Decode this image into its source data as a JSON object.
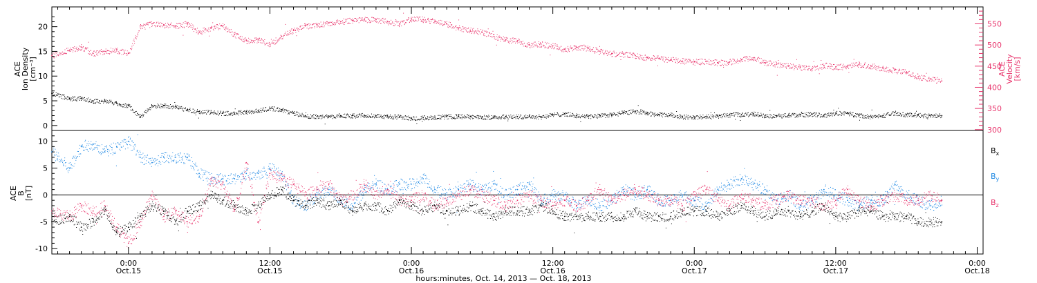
{
  "chart_data": [
    {
      "type": "scatter",
      "panel": "top",
      "ylabel_left": [
        "ACE",
        "Ion Density",
        "[cm⁻³]"
      ],
      "ylabel_right": [
        "ACE",
        "Velocity",
        "[km/s]"
      ],
      "ylim_left": [
        -1,
        24
      ],
      "ylim_right": [
        298,
        590
      ],
      "yticks_left": [
        "0",
        "5",
        "10",
        "15",
        "20"
      ],
      "yticks_right": [
        "300",
        "350",
        "400",
        "450",
        "500",
        "550"
      ],
      "xlim": [
        -6.5,
        72.5
      ],
      "series": [
        {
          "name": "Ion Density",
          "axis": "left",
          "color": "#000000",
          "x": [
            -6.5,
            -5,
            -4,
            -3,
            -2,
            -1,
            0,
            1,
            2,
            3,
            4,
            5,
            6,
            7,
            8,
            9,
            10,
            11,
            12,
            13,
            14,
            15,
            16,
            17,
            18,
            19,
            20,
            21,
            22,
            23,
            24,
            25,
            26,
            27,
            28,
            29,
            30,
            31,
            32,
            33,
            34,
            35,
            36,
            37,
            38,
            39,
            40,
            41,
            42,
            43,
            44,
            45,
            46,
            47,
            48,
            49,
            50,
            51,
            52,
            53,
            54,
            55,
            56,
            57,
            58,
            59,
            60,
            61,
            62,
            63,
            64,
            65,
            66,
            67,
            68,
            69
          ],
          "y": [
            6.5,
            5.5,
            5.5,
            5,
            5,
            4.5,
            4,
            1.8,
            4,
            4,
            3.8,
            3.2,
            2.8,
            2.7,
            2.5,
            2.5,
            2.8,
            3,
            3.5,
            3.2,
            2.5,
            2,
            1.8,
            1.9,
            2,
            2,
            2.1,
            2,
            1.8,
            1.8,
            1.5,
            1.6,
            1.7,
            1.8,
            1.9,
            1.8,
            1.7,
            1.7,
            1.8,
            1.8,
            1.9,
            1.8,
            2.2,
            2.4,
            2,
            1.9,
            2,
            2.2,
            2.6,
            2.9,
            2.5,
            2.2,
            2.2,
            1.8,
            1.7,
            1.8,
            1.9,
            2.2,
            2.2,
            2.4,
            2,
            2,
            2.1,
            2.2,
            2.3,
            2.1,
            2.5,
            2.5,
            2.1,
            1.8,
            2,
            2.6,
            2.2,
            2.1,
            2,
            2
          ]
        },
        {
          "name": "Velocity",
          "axis": "right",
          "color": "#e8336b",
          "x": [
            -6.5,
            -5,
            -4,
            -3,
            -2,
            -1,
            0,
            1,
            2,
            3,
            4,
            5,
            6,
            7,
            8,
            9,
            10,
            11,
            12,
            13,
            14,
            15,
            16,
            17,
            18,
            19,
            20,
            21,
            22,
            23,
            24,
            25,
            26,
            27,
            28,
            29,
            30,
            31,
            32,
            33,
            34,
            35,
            36,
            37,
            38,
            39,
            40,
            41,
            42,
            43,
            44,
            45,
            46,
            47,
            48,
            49,
            50,
            51,
            52,
            53,
            54,
            55,
            56,
            57,
            58,
            59,
            60,
            61,
            62,
            63,
            64,
            65,
            66,
            67,
            68,
            69
          ],
          "y": [
            475,
            488,
            495,
            480,
            485,
            488,
            480,
            545,
            550,
            548,
            545,
            550,
            530,
            540,
            545,
            525,
            510,
            512,
            502,
            520,
            535,
            545,
            548,
            552,
            555,
            558,
            560,
            560,
            555,
            550,
            562,
            560,
            555,
            550,
            540,
            535,
            530,
            520,
            512,
            510,
            500,
            502,
            498,
            490,
            495,
            492,
            485,
            480,
            478,
            475,
            470,
            468,
            465,
            462,
            460,
            462,
            458,
            460,
            465,
            470,
            458,
            455,
            450,
            448,
            445,
            452,
            448,
            450,
            455,
            450,
            445,
            440,
            435,
            425,
            420,
            415
          ]
        }
      ]
    },
    {
      "type": "scatter",
      "panel": "bottom",
      "ylabel_left": [
        "ACE",
        "B",
        "[nT]"
      ],
      "ylim": [
        -11,
        12
      ],
      "yticks": [
        "-10",
        "-5",
        "0",
        "5",
        "10"
      ],
      "xlim": [
        -6.5,
        72.5
      ],
      "zero_line": true,
      "series": [
        {
          "name": "Bx",
          "label_main": "B",
          "label_sub": "x",
          "color": "#000000",
          "x": [
            -6.5,
            -5,
            -4,
            -3,
            -2,
            -1,
            0,
            1,
            2,
            3,
            4,
            5,
            6,
            7,
            8,
            9,
            10,
            11,
            12,
            13,
            14,
            15,
            16,
            17,
            18,
            19,
            20,
            21,
            22,
            23,
            24,
            25,
            26,
            27,
            28,
            29,
            30,
            31,
            32,
            33,
            34,
            35,
            36,
            37,
            38,
            39,
            40,
            41,
            42,
            43,
            44,
            45,
            46,
            47,
            48,
            49,
            50,
            51,
            52,
            53,
            54,
            55,
            56,
            57,
            58,
            59,
            60,
            61,
            62,
            63,
            64,
            65,
            66,
            67,
            68,
            69
          ],
          "y": [
            -5,
            -4,
            -6,
            -5,
            -3,
            -7,
            -6,
            -4,
            -2,
            -3,
            -5,
            -3,
            -2,
            0,
            -1,
            -2,
            -3,
            -2,
            0,
            1,
            -1,
            -2,
            -1,
            -2,
            -1,
            -3,
            -2,
            -2,
            -3,
            -1,
            -2,
            -3,
            -2,
            -3,
            -3,
            -2,
            -3,
            -4,
            -3,
            -3,
            -3,
            -2,
            -3,
            -4,
            -4,
            -4,
            -4,
            -4,
            -4,
            -3,
            -4,
            -4,
            -4,
            -3,
            -3,
            -3,
            -4,
            -3,
            -2,
            -3,
            -4,
            -3,
            -3,
            -4,
            -3,
            -2,
            -4,
            -4,
            -3,
            -3,
            -4,
            -4,
            -4,
            -5,
            -5,
            -5
          ]
        },
        {
          "name": "By",
          "label_main": "B",
          "label_sub": "y",
          "color": "#1a86e3",
          "x": [
            -6.5,
            -5,
            -4,
            -3,
            -2,
            -1,
            0,
            1,
            2,
            3,
            4,
            5,
            6,
            7,
            8,
            9,
            10,
            11,
            12,
            13,
            14,
            15,
            16,
            17,
            18,
            19,
            20,
            21,
            22,
            23,
            24,
            25,
            26,
            27,
            28,
            29,
            30,
            31,
            32,
            33,
            34,
            35,
            36,
            37,
            38,
            39,
            40,
            41,
            42,
            43,
            44,
            45,
            46,
            47,
            48,
            49,
            50,
            51,
            52,
            53,
            54,
            55,
            56,
            57,
            58,
            59,
            60,
            61,
            62,
            63,
            64,
            65,
            66,
            67,
            68,
            69
          ],
          "y": [
            8,
            5,
            9,
            9.5,
            8,
            9,
            10,
            7,
            6,
            7,
            7,
            7,
            4,
            3,
            3,
            3,
            4,
            4,
            5,
            4,
            -1,
            -2,
            0,
            1,
            -1,
            -2,
            1,
            2,
            1,
            2,
            2,
            3,
            1,
            0,
            1,
            2,
            1,
            2,
            0,
            1,
            2,
            -1,
            0,
            0,
            -2,
            -1,
            -2,
            -1,
            1,
            0,
            1,
            -1,
            -1,
            0,
            -1,
            -2,
            1,
            2,
            3,
            2,
            1,
            -1,
            0,
            -2,
            -1,
            1,
            0,
            -1,
            -2,
            -1,
            -1,
            2,
            0,
            -1,
            -2,
            -1
          ]
        },
        {
          "name": "Bz",
          "label_main": "B",
          "label_sub": "z",
          "color": "#e8336b",
          "x": [
            -6.5,
            -5,
            -4,
            -3,
            -2,
            -1,
            0,
            1,
            2,
            3,
            4,
            5,
            6,
            7,
            8,
            9,
            10,
            11,
            12,
            13,
            14,
            15,
            16,
            17,
            18,
            19,
            20,
            21,
            22,
            23,
            24,
            25,
            26,
            27,
            28,
            29,
            30,
            31,
            32,
            33,
            34,
            35,
            36,
            37,
            38,
            39,
            40,
            41,
            42,
            43,
            44,
            45,
            46,
            47,
            48,
            49,
            50,
            51,
            52,
            53,
            54,
            55,
            56,
            57,
            58,
            59,
            60,
            61,
            62,
            63,
            64,
            65,
            66,
            67,
            68,
            69
          ],
          "y": [
            -3,
            -4,
            -2,
            -3,
            -2,
            -6,
            -9,
            -5,
            0,
            -4,
            -3,
            -5,
            -4,
            3,
            2,
            -3,
            6,
            -5,
            4,
            3,
            2,
            0,
            1,
            2,
            -1,
            0,
            2,
            0,
            1,
            -1,
            -1,
            0,
            -2,
            -1,
            0,
            1,
            0,
            -1,
            -2,
            -1,
            0,
            -1,
            -2,
            -1,
            -2,
            -1,
            1,
            -1,
            0,
            1,
            0,
            -1,
            -1,
            -2,
            0,
            1,
            -1,
            -2,
            0,
            -1,
            -2,
            -1,
            0,
            -1,
            -1,
            -2,
            -1,
            1,
            -1,
            -2,
            -1,
            0,
            -1,
            -1,
            0,
            -1
          ]
        }
      ]
    }
  ],
  "x_axis": {
    "ticks": [
      {
        "t": 0,
        "time": "0:00",
        "date": "Oct.15"
      },
      {
        "t": 12,
        "time": "12:00",
        "date": "Oct.15"
      },
      {
        "t": 24,
        "time": "0:00",
        "date": "Oct.16"
      },
      {
        "t": 36,
        "time": "12:00",
        "date": "Oct.16"
      },
      {
        "t": 48,
        "time": "0:00",
        "date": "Oct.17"
      },
      {
        "t": 60,
        "time": "12:00",
        "date": "Oct.17"
      },
      {
        "t": 72,
        "time": "0:00",
        "date": "Oct.18"
      }
    ],
    "title": "hours:minutes, Oct. 14, 2013 — Oct. 18, 2013"
  }
}
